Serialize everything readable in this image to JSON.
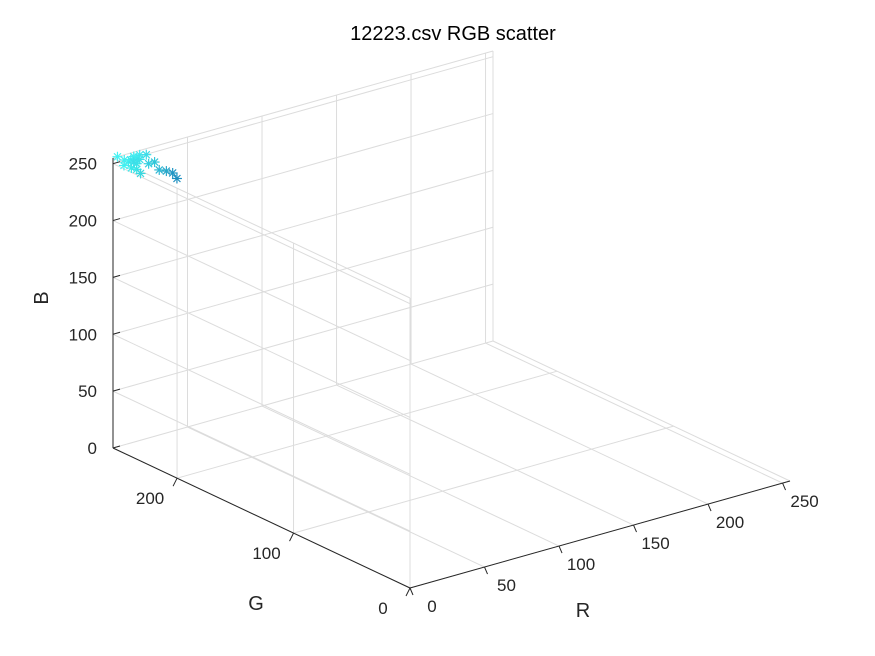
{
  "chart_data": {
    "type": "scatter",
    "title": "12223.csv RGB scatter",
    "xlabel": "R",
    "ylabel": "G",
    "zlabel": "B",
    "xlim": [
      0,
      255
    ],
    "ylim": [
      0,
      255
    ],
    "zlim": [
      0,
      255
    ],
    "xticks": [
      0,
      50,
      100,
      150,
      200,
      250
    ],
    "yticks": [
      0,
      100,
      200
    ],
    "zticks": [
      0,
      50,
      100,
      150,
      200,
      250
    ],
    "grid": true,
    "marker": "*",
    "colors": {
      "grid": "#dcdcdc",
      "axis": "#262626"
    },
    "points": [
      {
        "r": 8,
        "g": 252,
        "b": 250,
        "color": "#3ff0f0"
      },
      {
        "r": 11,
        "g": 250,
        "b": 253,
        "color": "#3ceded"
      },
      {
        "r": 5,
        "g": 252,
        "b": 248,
        "color": "#40f2f2"
      },
      {
        "r": 10,
        "g": 252,
        "b": 244,
        "color": "#3ae9ea"
      },
      {
        "r": 12,
        "g": 250,
        "b": 243,
        "color": "#38e6e8"
      },
      {
        "r": 12,
        "g": 250,
        "b": 248,
        "color": "#37e3e6"
      },
      {
        "r": 13,
        "g": 248,
        "b": 240,
        "color": "#3ad8df"
      },
      {
        "r": 12,
        "g": 250,
        "b": 252,
        "color": "#3ce4ea"
      },
      {
        "r": 8,
        "g": 250,
        "b": 253,
        "color": "#3ee8ee"
      },
      {
        "r": 3,
        "g": 255,
        "b": 255,
        "color": "#45f3f3"
      },
      {
        "r": 6,
        "g": 253,
        "b": 252,
        "color": "#42eeef"
      },
      {
        "r": 14,
        "g": 250,
        "b": 251,
        "color": "#3ee0e8"
      },
      {
        "r": 14,
        "g": 250,
        "b": 255,
        "color": "#3fe6ed"
      },
      {
        "r": 10,
        "g": 250,
        "b": 255,
        "color": "#40ebef"
      },
      {
        "r": 10,
        "g": 250,
        "b": 250,
        "color": "#3cdfe8"
      },
      {
        "r": 20,
        "g": 250,
        "b": 245,
        "color": "#35cfe0"
      },
      {
        "r": 20,
        "g": 252,
        "b": 252,
        "color": "#3adde8"
      },
      {
        "r": 24,
        "g": 250,
        "b": 245,
        "color": "#30c6d8"
      },
      {
        "r": 24,
        "g": 246,
        "b": 240,
        "color": "#30b8d4"
      },
      {
        "r": 28,
        "g": 245,
        "b": 238,
        "color": "#2aa8ca"
      },
      {
        "r": 33,
        "g": 246,
        "b": 234,
        "color": "#2196c4"
      },
      {
        "r": 39,
        "g": 250,
        "b": 225,
        "color": "#1d8fc0"
      }
    ]
  }
}
